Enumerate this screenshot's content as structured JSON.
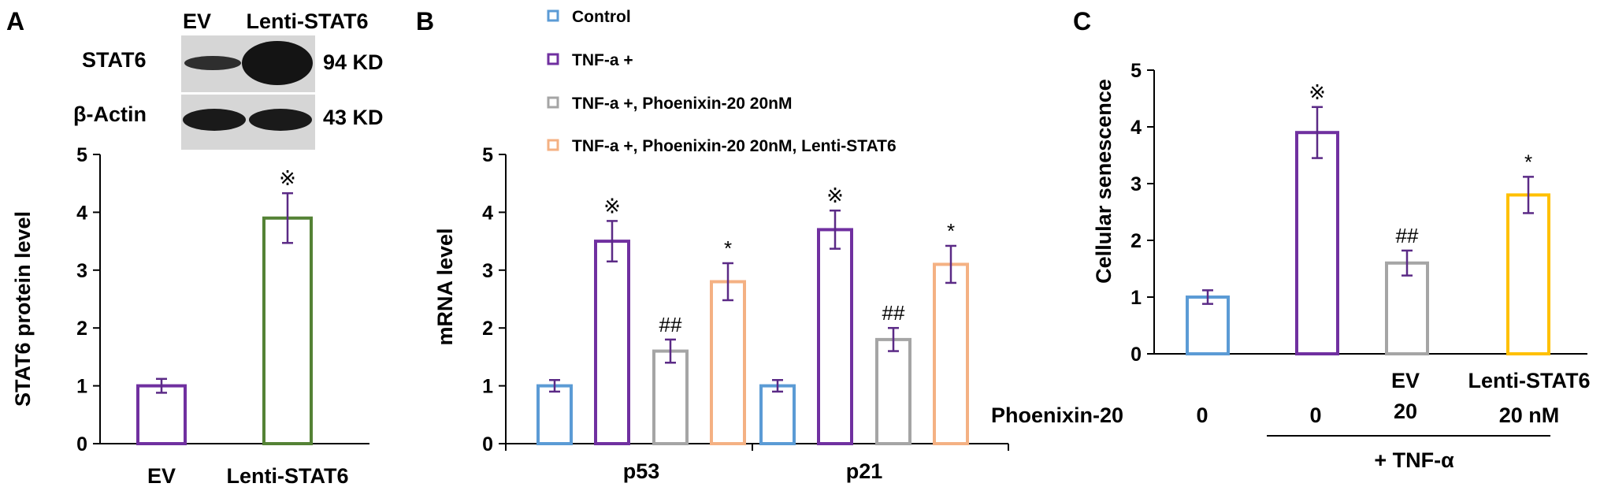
{
  "panels": {
    "A": {
      "letter": "A",
      "blot": {
        "lanes": [
          "EV",
          "Lenti-STAT6"
        ],
        "rows": [
          {
            "protein": "STAT6",
            "size": "94 KD"
          },
          {
            "protein": "β-Actin",
            "size": "43 KD"
          }
        ]
      }
    },
    "B": {
      "letter": "B"
    },
    "C": {
      "letter": "C",
      "row_label": "Phoenixin-20",
      "ev_label": "EV",
      "lenti_label": "Lenti-STAT6",
      "dose_labels": [
        "0",
        "0",
        "20",
        "20 nM"
      ],
      "tnf_label": "+ TNF-α"
    }
  },
  "colors": {
    "blue": "#5b9bd5",
    "purple": "#7030a0",
    "gray": "#a5a5a5",
    "orange": "#f4b183",
    "green": "#548235",
    "gold": "#ffc000",
    "error": "#5b2a86"
  },
  "chart_data": [
    {
      "type": "bar",
      "panel": "A",
      "ylabel": "STAT6 protein level",
      "ylim": [
        0,
        5
      ],
      "yticks": [
        "0",
        "1",
        "2",
        "3",
        "4",
        "5"
      ],
      "categories": [
        "EV",
        "Lenti-STAT6"
      ],
      "values": [
        1.0,
        3.9
      ],
      "errors": [
        0.12,
        0.43
      ],
      "annotations": [
        "",
        "※"
      ],
      "colors": [
        "#7030a0",
        "#548235"
      ]
    },
    {
      "type": "bar",
      "panel": "B",
      "ylabel": "mRNA level",
      "ylim": [
        0,
        5
      ],
      "yticks": [
        "0",
        "1",
        "2",
        "3",
        "4",
        "5"
      ],
      "categories": [
        "p53",
        "p21"
      ],
      "legend": [
        "Control",
        "TNF-a +",
        "TNF-a +, Phoenixin-20 20nM",
        "TNF-a +, Phoenixin-20 20nM, Lenti-STAT6"
      ],
      "series": [
        {
          "name": "Control",
          "values": [
            1.0,
            1.0
          ],
          "errors": [
            0.1,
            0.1
          ],
          "annotations": [
            "",
            ""
          ],
          "color": "#5b9bd5"
        },
        {
          "name": "TNF-a +",
          "values": [
            3.5,
            3.7
          ],
          "errors": [
            0.35,
            0.33
          ],
          "annotations": [
            "※",
            "※"
          ],
          "color": "#7030a0"
        },
        {
          "name": "TNF-a +, Phoenixin-20 20nM",
          "values": [
            1.6,
            1.8
          ],
          "errors": [
            0.2,
            0.2
          ],
          "annotations": [
            "##",
            "##"
          ],
          "color": "#a5a5a5"
        },
        {
          "name": "TNF-a +, Phoenixin-20 20nM, Lenti-STAT6",
          "values": [
            2.8,
            3.1
          ],
          "errors": [
            0.32,
            0.32
          ],
          "annotations": [
            "*",
            "*"
          ],
          "color": "#f4b183"
        }
      ]
    },
    {
      "type": "bar",
      "panel": "C",
      "ylabel": "Cellular senescence",
      "ylim": [
        0,
        5
      ],
      "yticks": [
        "0",
        "1",
        "2",
        "3",
        "4",
        "5"
      ],
      "values": [
        1.0,
        3.9,
        1.6,
        2.8
      ],
      "errors": [
        0.12,
        0.45,
        0.22,
        0.32
      ],
      "annotations": [
        "",
        "※",
        "##",
        "*"
      ],
      "colors": [
        "#5b9bd5",
        "#7030a0",
        "#a5a5a5",
        "#ffc000"
      ]
    }
  ]
}
